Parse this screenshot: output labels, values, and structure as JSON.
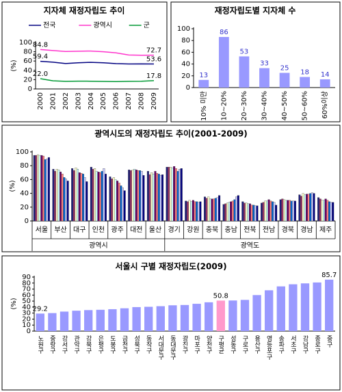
{
  "chart_data": [
    {
      "type": "line",
      "title": "지자체 재정자립도 추이",
      "y_label": "(%)",
      "categories": [
        "2000",
        "2001",
        "2002",
        "2003",
        "2004",
        "2005",
        "2006",
        "2007",
        "2008",
        "2009"
      ],
      "series": [
        {
          "name": "전국",
          "color": "#000080",
          "values": [
            59.4,
            57.6,
            54.6,
            56.3,
            57.2,
            56.2,
            54.4,
            53.6,
            53.9,
            53.6
          ],
          "value_labels": [
            "59.4",
            null,
            null,
            null,
            null,
            null,
            null,
            null,
            null,
            "53.6"
          ]
        },
        {
          "name": "광역시",
          "color": "#ff33cc",
          "values": [
            84.8,
            82.5,
            80.5,
            81,
            81.5,
            80,
            77.5,
            73,
            72.5,
            72.7
          ],
          "value_labels": [
            "84.8",
            null,
            null,
            null,
            null,
            null,
            null,
            null,
            null,
            "72.7"
          ]
        },
        {
          "name": "군",
          "color": "#009933",
          "values": [
            22.0,
            17.5,
            16.3,
            16.8,
            16.6,
            16.1,
            15.9,
            16.3,
            16.6,
            17.8
          ],
          "value_labels": [
            "22.0",
            null,
            null,
            null,
            null,
            null,
            null,
            null,
            null,
            "17.8"
          ]
        }
      ],
      "ylim": [
        0,
        100
      ],
      "yticks": [
        0,
        20,
        40,
        60,
        80,
        100
      ],
      "grid": false
    },
    {
      "type": "bar",
      "title": "재정자립도별 지자체 수",
      "categories": [
        "10% 미만",
        "10~20%",
        "20~30%",
        "30~40%",
        "40~50%",
        "50~60%",
        "60%이상"
      ],
      "values": [
        13,
        86,
        53,
        33,
        25,
        18,
        14
      ],
      "color": "#9999ff",
      "ylim": [
        0,
        100
      ],
      "yticks": [
        0,
        20,
        40,
        60,
        80,
        100
      ],
      "grid": false
    },
    {
      "type": "bar",
      "title": "광역시도의 재정자립도 추이(2001-2009)",
      "y_label": "(%)",
      "groups": [
        {
          "label": "광역시",
          "categories": [
            "서울",
            "부산",
            "대구",
            "인천",
            "광주",
            "대전",
            "울산"
          ]
        },
        {
          "label": "광역도",
          "categories": [
            "경기",
            "강원",
            "충북",
            "충남",
            "전북",
            "전남",
            "경북",
            "경남",
            "제주"
          ]
        }
      ],
      "series": [
        {
          "color": "#1f1f7a",
          "values": [
            95,
            75,
            76,
            78,
            64,
            74,
            72,
            78,
            29,
            35,
            24,
            28,
            26,
            31,
            38,
            34
          ]
        },
        {
          "color": "#993366",
          "values": [
            95,
            72,
            73,
            75,
            61,
            73,
            67,
            78,
            28,
            33,
            25,
            26,
            27,
            32,
            36,
            32
          ]
        },
        {
          "color": "#ffffcc",
          "values": [
            96,
            75,
            77,
            76,
            63,
            74,
            70,
            78,
            30,
            35,
            26,
            26,
            29,
            31,
            40,
            30
          ]
        },
        {
          "color": "#ccffff",
          "values": [
            95,
            74,
            75,
            72,
            60,
            75,
            68,
            77,
            28,
            32,
            27,
            25,
            29,
            30,
            38,
            30
          ]
        },
        {
          "color": "#660066",
          "values": [
            95,
            71,
            70,
            71,
            58,
            74,
            72,
            79,
            30,
            32,
            28,
            25,
            31,
            30,
            39,
            32
          ]
        },
        {
          "color": "#ff8080",
          "values": [
            94,
            68,
            69,
            70,
            55,
            73,
            69,
            76,
            28,
            32,
            29,
            23,
            29,
            30,
            39,
            30
          ]
        },
        {
          "color": "#0066cc",
          "values": [
            89,
            63,
            68,
            72,
            51,
            73,
            68,
            72,
            28,
            33,
            31,
            23,
            28,
            29,
            40,
            28
          ]
        },
        {
          "color": "#ccccff",
          "values": [
            90,
            61,
            63,
            76,
            48,
            72,
            66,
            75,
            27,
            34,
            35,
            22,
            27,
            29,
            41,
            27
          ]
        },
        {
          "color": "#000080",
          "values": [
            92,
            58,
            57,
            68,
            44,
            66,
            67,
            76,
            28,
            37,
            37,
            22,
            23,
            29,
            40,
            27
          ]
        }
      ],
      "ylim": [
        0,
        100
      ],
      "yticks": [
        0,
        20,
        40,
        60,
        80,
        100
      ],
      "grid": false
    },
    {
      "type": "bar",
      "title": "서울시 구별 재정자립도(2009)",
      "y_label": "(%)",
      "categories": [
        "노원구",
        "중랑구",
        "강서구",
        "관악구",
        "강북구",
        "은평구",
        "도봉구",
        "금천구",
        "성북구",
        "동작구",
        "서대문구",
        "동대문구",
        "광진구",
        "마포구",
        "양천구",
        "구평균",
        "성동구",
        "구로구",
        "용산구",
        "영등포구",
        "송파구",
        "서초구",
        "강남구",
        "종로구",
        "중구"
      ],
      "values": [
        29.2,
        30,
        32.5,
        34,
        35,
        35.5,
        36.5,
        38,
        40,
        40.5,
        41.5,
        43,
        43.5,
        45.5,
        48,
        50.8,
        51,
        52,
        60,
        68,
        74.5,
        78,
        79.5,
        81,
        85.7
      ],
      "value_labels": [
        "29.2",
        null,
        null,
        null,
        null,
        null,
        null,
        null,
        null,
        null,
        null,
        null,
        null,
        null,
        null,
        "50.8",
        null,
        null,
        null,
        null,
        null,
        null,
        null,
        null,
        "85.7"
      ],
      "color": "#9999ff",
      "colors": [
        "#9999ff",
        "#9999ff",
        "#9999ff",
        "#9999ff",
        "#9999ff",
        "#9999ff",
        "#9999ff",
        "#9999ff",
        "#9999ff",
        "#9999ff",
        "#9999ff",
        "#9999ff",
        "#9999ff",
        "#9999ff",
        "#9999ff",
        "#ff99cc",
        "#9999ff",
        "#9999ff",
        "#9999ff",
        "#9999ff",
        "#9999ff",
        "#9999ff",
        "#9999ff",
        "#9999ff",
        "#9999ff"
      ],
      "ylim": [
        0,
        90
      ],
      "yticks": [
        0,
        10,
        20,
        30,
        40,
        50,
        60,
        70,
        80,
        90
      ],
      "grid": false
    }
  ]
}
